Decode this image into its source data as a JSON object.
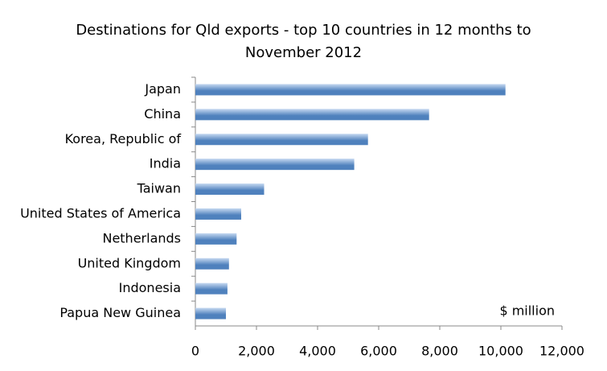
{
  "chart_data": {
    "type": "bar",
    "orientation": "horizontal",
    "title": "Destinations for Qld exports - top 10 countries in 12 months to November 2012",
    "categories": [
      "Japan",
      "China",
      "Korea, Republic of",
      "India",
      "Taiwan",
      "United States of America",
      "Netherlands",
      "United Kingdom",
      "Indonesia",
      "Papua New Guinea"
    ],
    "values": [
      10150,
      7650,
      5650,
      5200,
      2250,
      1500,
      1350,
      1100,
      1050,
      1000
    ],
    "color": "#4f81bd",
    "xlim": [
      0,
      12000
    ],
    "xticks": [
      0,
      {
        "value": 2000,
        "label": "2,000"
      },
      {
        "value": 4000,
        "label": "4,000"
      },
      {
        "value": 6000,
        "label": "6,000"
      },
      {
        "value": 8000,
        "label": "8,000"
      },
      {
        "value": 10000,
        "label": "10,000"
      },
      {
        "value": 12000,
        "label": "12,000"
      }
    ],
    "annotation": "$ million"
  }
}
